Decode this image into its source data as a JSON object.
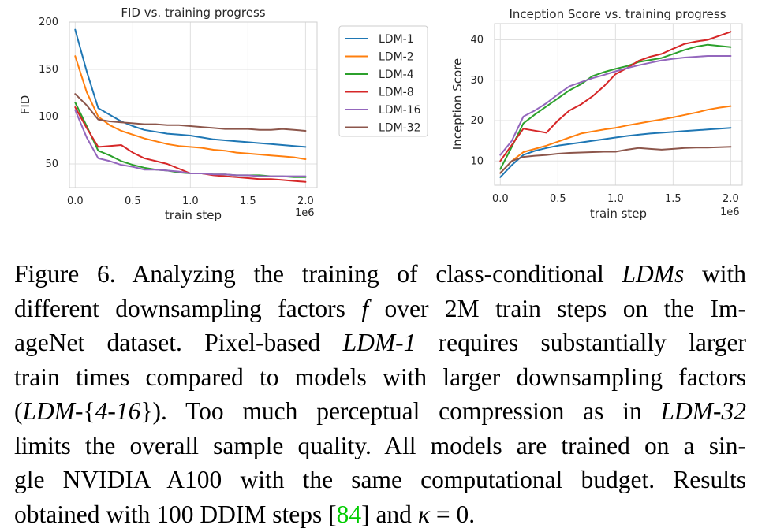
{
  "chart_data": [
    {
      "type": "line",
      "title": "FID vs. training progress",
      "xlabel": "train step",
      "x_offset_label": "1e6",
      "ylabel": "FID",
      "xlim": [
        -0.05,
        2.1
      ],
      "ylim": [
        25,
        200
      ],
      "x_ticks": [
        0.0,
        0.5,
        1.0,
        1.5,
        2.0
      ],
      "x_tick_labels": [
        "0.0",
        "0.5",
        "1.0",
        "1.5",
        "2.0"
      ],
      "y_ticks": [
        50,
        100,
        150,
        200
      ],
      "y_tick_labels": [
        "50",
        "100",
        "150",
        "200"
      ],
      "grid": true,
      "legend": "outside-right",
      "x": [
        0.0,
        0.1,
        0.2,
        0.3,
        0.4,
        0.5,
        0.6,
        0.7,
        0.8,
        0.9,
        1.0,
        1.1,
        1.2,
        1.3,
        1.4,
        1.5,
        1.6,
        1.7,
        1.8,
        1.9,
        2.0
      ],
      "series": [
        {
          "name": "LDM-1",
          "color": "#1f77b4",
          "values": [
            192,
            148,
            109,
            102,
            95,
            90,
            86,
            84,
            82,
            81,
            80,
            78,
            76,
            75,
            74,
            73,
            72,
            71,
            70,
            69,
            68
          ]
        },
        {
          "name": "LDM-2",
          "color": "#ff7f0e",
          "values": [
            164,
            126,
            100,
            91,
            85,
            81,
            77,
            74,
            71,
            69,
            68,
            67,
            65,
            64,
            62,
            61,
            60,
            59,
            58,
            57,
            55
          ]
        },
        {
          "name": "LDM-4",
          "color": "#2ca02c",
          "values": [
            115,
            90,
            64,
            59,
            53,
            49,
            46,
            44,
            43,
            41,
            40,
            40,
            39,
            39,
            38,
            38,
            38,
            37,
            37,
            36,
            36
          ]
        },
        {
          "name": "LDM-8",
          "color": "#d62728",
          "values": [
            110,
            88,
            68,
            69,
            70,
            62,
            56,
            53,
            50,
            45,
            40,
            40,
            38,
            37,
            36,
            35,
            34,
            34,
            33,
            32,
            31
          ]
        },
        {
          "name": "LDM-16",
          "color": "#9467bd",
          "values": [
            107,
            78,
            56,
            53,
            49,
            47,
            44,
            44,
            43,
            42,
            40,
            40,
            39,
            39,
            38,
            38,
            37,
            37,
            37,
            37,
            37
          ]
        },
        {
          "name": "LDM-32",
          "color": "#8c564b",
          "values": [
            124,
            112,
            97,
            95,
            94,
            93,
            92,
            92,
            91,
            91,
            90,
            89,
            88,
            87,
            87,
            87,
            86,
            86,
            87,
            86,
            85
          ]
        }
      ]
    },
    {
      "type": "line",
      "title": "Inception Score vs. training progress",
      "xlabel": "train step",
      "x_offset_label": "1e6",
      "ylabel": "Inception Score",
      "xlim": [
        -0.05,
        2.1
      ],
      "ylim": [
        4,
        44
      ],
      "x_ticks": [
        0.0,
        0.5,
        1.0,
        1.5,
        2.0
      ],
      "x_tick_labels": [
        "0.0",
        "0.5",
        "1.0",
        "1.5",
        "2.0"
      ],
      "y_ticks": [
        10,
        20,
        30,
        40
      ],
      "y_tick_labels": [
        "10",
        "20",
        "30",
        "40"
      ],
      "grid": true,
      "legend": "none",
      "x": [
        0.0,
        0.1,
        0.2,
        0.3,
        0.4,
        0.5,
        0.6,
        0.7,
        0.8,
        0.9,
        1.0,
        1.1,
        1.2,
        1.3,
        1.4,
        1.5,
        1.6,
        1.7,
        1.8,
        1.9,
        2.0
      ],
      "series": [
        {
          "name": "LDM-1",
          "color": "#1f77b4",
          "values": [
            6,
            9,
            11.5,
            12.5,
            13.2,
            13.8,
            14.2,
            14.6,
            15,
            15.4,
            15.8,
            16.2,
            16.5,
            16.8,
            17,
            17.2,
            17.4,
            17.6,
            17.8,
            18,
            18.2
          ]
        },
        {
          "name": "LDM-2",
          "color": "#ff7f0e",
          "values": [
            7,
            10,
            12.2,
            13,
            13.8,
            14.8,
            15.8,
            16.8,
            17.3,
            17.8,
            18.2,
            18.8,
            19.3,
            19.8,
            20.3,
            20.8,
            21.4,
            22,
            22.7,
            23.2,
            23.6
          ]
        },
        {
          "name": "LDM-4",
          "color": "#2ca02c",
          "values": [
            8,
            13.5,
            19.3,
            21.5,
            23.5,
            25.5,
            27.5,
            29,
            31,
            32,
            32.8,
            33.5,
            34.5,
            35,
            35.5,
            36.5,
            37.5,
            38.3,
            38.8,
            38.5,
            38.2
          ]
        },
        {
          "name": "LDM-8",
          "color": "#d62728",
          "values": [
            10,
            14,
            18,
            17.5,
            17,
            20,
            22.5,
            24,
            26,
            28.5,
            31.5,
            33,
            34.8,
            35.8,
            36.5,
            37.8,
            39,
            39.6,
            40,
            41,
            42
          ]
        },
        {
          "name": "LDM-16",
          "color": "#9467bd",
          "values": [
            11.5,
            15,
            21,
            22.5,
            24.3,
            26.5,
            28.5,
            29.5,
            30.5,
            31.3,
            32.2,
            33,
            33.7,
            34.3,
            34.9,
            35.3,
            35.6,
            35.8,
            36,
            36,
            36
          ]
        },
        {
          "name": "LDM-32",
          "color": "#8c564b",
          "values": [
            7,
            10,
            11,
            11.3,
            11.5,
            11.8,
            12,
            12.1,
            12.2,
            12.3,
            12.3,
            12.8,
            13.2,
            13,
            12.8,
            13,
            13.2,
            13.3,
            13.3,
            13.4,
            13.5
          ]
        }
      ]
    }
  ],
  "caption": {
    "lines": [
      [
        "Figure 6. Analyzing the training of class-conditional ",
        "LDMs",
        " with"
      ],
      [
        "different downsampling factors ",
        "f",
        " over 2M train steps on the Im-"
      ],
      [
        "ageNet dataset. Pixel-based ",
        "LDM-1",
        " requires substantially larger"
      ],
      [
        "train times compared to models with larger downsampling factors"
      ],
      [
        "(",
        "LDM-{4-16}",
        "). Too much perceptual compression as in ",
        "LDM-32",
        ""
      ],
      [
        "limits the overall sample quality. All models are trained on a sin-"
      ],
      [
        "gle NVIDIA A100 with the same computational budget. Results"
      ],
      [
        "obtained with 100 DDIM steps [",
        "84",
        "] and ",
        "κ = 0",
        "."
      ]
    ],
    "line1_a": "Figure 6. Analyzing the training of class-conditional ",
    "line1_em": "LDMs",
    "line1_b": " with",
    "line2_a": "different downsampling factors ",
    "line2_em": "f",
    "line2_b": " over 2M train steps on the Im-",
    "line3_a": "ageNet dataset. Pixel-based ",
    "line3_em": "LDM-1",
    "line3_b": " requires substantially larger",
    "line4": "train times compared to models with larger downsampling factors",
    "line5_a": "(",
    "line5_em1": "LDM-",
    "line5_brace_open": "{",
    "line5_em2": "4-16",
    "line5_brace_close": "}",
    "line5_b": "). Too much perceptual compression as in ",
    "line5_em3": "LDM-32",
    "line6": "limits the overall sample quality. All models are trained on a sin-",
    "line7": "gle NVIDIA A100 with the same computational budget. Results",
    "line8_a": "obtained with 100 DDIM steps [",
    "line8_cite": "84",
    "line8_b": "] and ",
    "line8_kappa": "κ",
    "line8_eq": " = 0",
    "line8_c": "."
  }
}
